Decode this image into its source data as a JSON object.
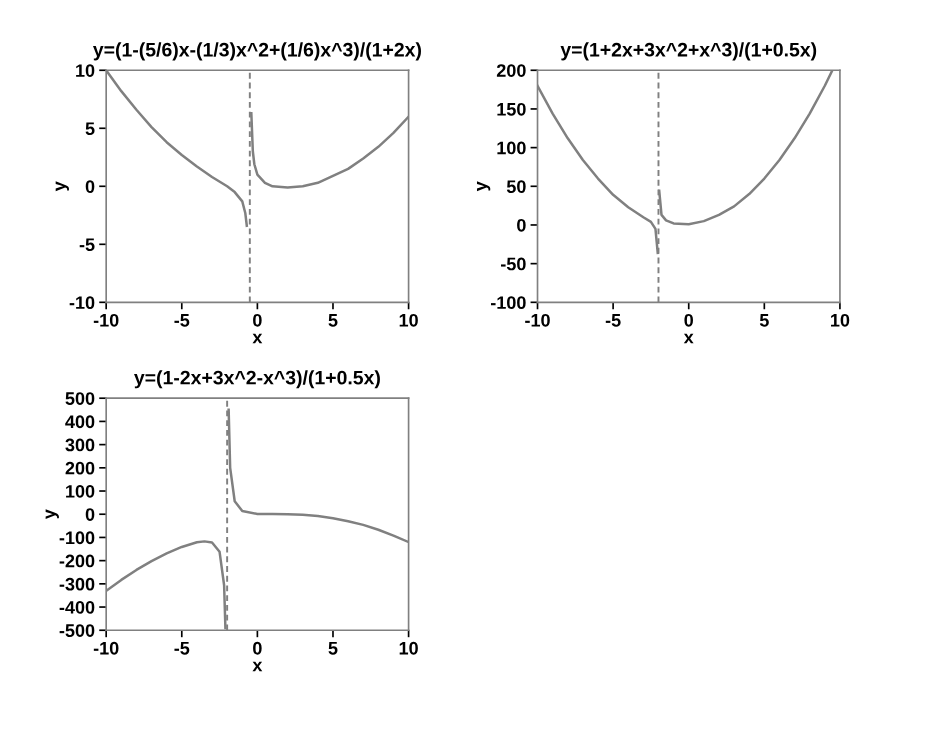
{
  "chart_data": [
    {
      "type": "line",
      "title": "y=(1-(5/6)x-(1/3)x^2+(1/6)x^3)/(1+2x)",
      "xlabel": "x",
      "ylabel": "y",
      "xlim": [
        -10,
        10
      ],
      "ylim": [
        -10,
        10
      ],
      "xticks": [
        -10,
        -5,
        0,
        5,
        10
      ],
      "yticks": [
        -10,
        -5,
        0,
        5,
        10
      ],
      "ref_lines": [
        {
          "axis": "x",
          "value": -0.5,
          "label": null,
          "color": "#808080",
          "line_style": "dashed"
        }
      ],
      "series": [
        {
          "color": "#808080",
          "x": [
            -10,
            -9,
            -8,
            -7,
            -6,
            -5,
            -4,
            -3,
            -2,
            -1.5,
            -1,
            -0.8,
            -0.7
          ],
          "values": [
            10.0,
            8.2,
            6.6,
            5.1,
            3.8,
            2.7,
            1.7,
            0.8,
            0.0,
            -0.5,
            -1.3,
            -2.3,
            -3.4
          ]
        },
        {
          "color": "#808080",
          "x": [
            -0.4,
            -0.3,
            -0.2,
            0,
            0.5,
            1,
            2,
            3,
            4,
            5,
            6,
            7,
            8,
            9,
            10
          ],
          "values": [
            6.3,
            3.0,
            1.9,
            1.0,
            0.3,
            0.0,
            -0.1,
            0.0,
            0.3,
            0.9,
            1.5,
            2.4,
            3.4,
            4.6,
            6.0
          ]
        }
      ]
    },
    {
      "type": "line",
      "title": "y=(1+2x+3x^2+x^3)/(1+0.5x)",
      "xlabel": "x",
      "ylabel": "y",
      "xlim": [
        -10,
        10
      ],
      "ylim": [
        -100,
        200
      ],
      "xticks": [
        -10,
        -5,
        0,
        5,
        10
      ],
      "yticks": [
        -100,
        -50,
        0,
        50,
        100,
        150,
        200
      ],
      "ref_lines": [
        {
          "axis": "x",
          "value": -2,
          "label": null,
          "color": "#808080",
          "line_style": "dashed"
        }
      ],
      "series": [
        {
          "color": "#808080",
          "x": [
            -10,
            -9,
            -8,
            -7,
            -6,
            -5,
            -4,
            -3,
            -2.5,
            -2.2,
            -2.05
          ],
          "values": [
            180,
            144,
            112,
            84,
            60,
            39,
            23,
            10,
            4,
            -5,
            -36
          ]
        },
        {
          "color": "#808080",
          "x": [
            -1.95,
            -1.8,
            -1.5,
            -1,
            0,
            1,
            2,
            3,
            4,
            5,
            6,
            7,
            8,
            9,
            9.5
          ],
          "values": [
            44,
            13,
            6,
            2,
            1,
            5,
            13,
            24,
            40,
            60,
            84,
            112,
            144,
            180,
            200
          ]
        }
      ]
    },
    {
      "type": "line",
      "title": "y=(1-2x+3x^2-x^3)/(1+0.5x)",
      "xlabel": "x",
      "ylabel": "y",
      "xlim": [
        -10,
        10
      ],
      "ylim": [
        -500,
        500
      ],
      "xticks": [
        -10,
        -5,
        0,
        5,
        10
      ],
      "yticks": [
        -500,
        -400,
        -300,
        -200,
        -100,
        0,
        100,
        200,
        300,
        400,
        500
      ],
      "ref_lines": [
        {
          "axis": "x",
          "value": -2,
          "label": null,
          "color": "#808080",
          "line_style": "dashed"
        }
      ],
      "series": [
        {
          "color": "#808080",
          "x": [
            -10,
            -9,
            -8,
            -7,
            -6,
            -5,
            -4,
            -3.5,
            -3,
            -2.5,
            -2.2,
            -2.115
          ],
          "values": [
            -330,
            -283,
            -240,
            -202,
            -169,
            -141,
            -121,
            -117,
            -122,
            -162,
            -306,
            -490
          ]
        },
        {
          "color": "#808080",
          "x": [
            -1.9,
            -1.8,
            -1.5,
            -1,
            0,
            1,
            2,
            3,
            4,
            5,
            6,
            7,
            8,
            9,
            10
          ],
          "values": [
            450,
            200,
            56,
            14,
            1,
            1,
            0,
            -2,
            -8,
            -17,
            -30,
            -46,
            -67,
            -92,
            -120
          ]
        }
      ]
    }
  ]
}
